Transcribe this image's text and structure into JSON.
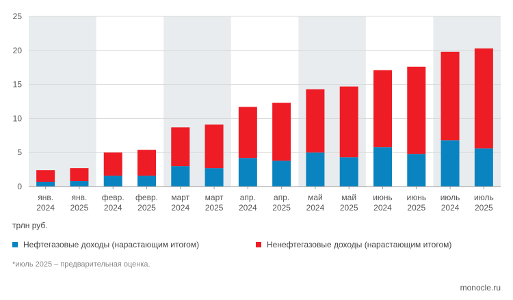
{
  "chart_data": {
    "type": "bar",
    "stacked": true,
    "categories": [
      [
        "янв.",
        "2024"
      ],
      [
        "янв.",
        "2025"
      ],
      [
        "февр.",
        "2024"
      ],
      [
        "февр.",
        "2025"
      ],
      [
        "март",
        "2024"
      ],
      [
        "март",
        "2025"
      ],
      [
        "апр.",
        "2024"
      ],
      [
        "апр.",
        "2025"
      ],
      [
        "май",
        "2024"
      ],
      [
        "май",
        "2025"
      ],
      [
        "июнь",
        "2024"
      ],
      [
        "июнь",
        "2025"
      ],
      [
        "июль",
        "2024"
      ],
      [
        "июль",
        "2025"
      ]
    ],
    "series": [
      {
        "name": "Нефтегазовые доходы (нарастающим итогом)",
        "color": "#0a84c0",
        "values": [
          0.7,
          0.8,
          1.6,
          1.6,
          3.0,
          2.7,
          4.2,
          3.8,
          5.0,
          4.3,
          5.8,
          4.8,
          6.8,
          5.6
        ]
      },
      {
        "name": "Ненефтегазовые доходы (нарастающим итогом)",
        "color": "#ee1c25",
        "values": [
          1.7,
          1.9,
          3.4,
          3.8,
          5.7,
          6.4,
          7.5,
          8.5,
          9.3,
          10.4,
          11.3,
          12.8,
          13.0,
          14.7
        ]
      }
    ],
    "ylim": [
      0,
      25
    ],
    "yticks": [
      "0",
      "5",
      "10",
      "15",
      "20",
      "25"
    ],
    "ylabel": "трлн руб.",
    "shaded_groups": [
      0,
      2,
      4,
      6
    ],
    "grid": true
  },
  "unit_label": "трлн руб.",
  "legend": {
    "item1": "Нефтегазовые доходы (нарастающим итогом)",
    "item2": "Ненефтегазовые доходы (нарастающим итогом)"
  },
  "footnote": "*июль 2025 – предварительная оценка.",
  "brand": "monocle.ru"
}
